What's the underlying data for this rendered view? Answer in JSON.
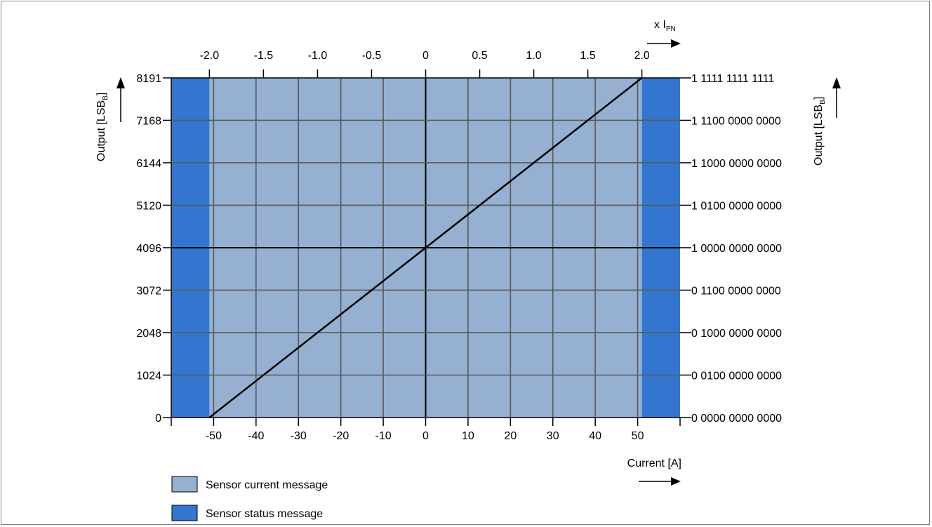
{
  "chart_data": {
    "type": "line",
    "xlabel": "Current [A]",
    "ylabel_left": "Output [LSB",
    "ylabel_right": "Output [LSB",
    "ylabel_subscript": "B",
    "x2label": "x I",
    "x2label_subscript": "PN",
    "xlim": [
      -60,
      60
    ],
    "ylim": [
      0,
      8191
    ],
    "x_ticks": [
      -50,
      -40,
      -30,
      -20,
      -10,
      0,
      10,
      20,
      30,
      40,
      50
    ],
    "x_tick_labels": [
      "-50",
      "-40",
      "-30",
      "-20",
      "-10",
      "0",
      "10",
      "20",
      "30",
      "40",
      "50"
    ],
    "x2_ticks": [
      -2.0,
      -1.5,
      -1.0,
      -0.5,
      0,
      0.5,
      1.0,
      1.5,
      2.0
    ],
    "x2_tick_labels": [
      "-2.0",
      "-1.5",
      "-1.0",
      "-0.5",
      "0",
      "0.5",
      "1.0",
      "1.5",
      "2.0"
    ],
    "y_ticks": [
      0,
      1024,
      2048,
      3072,
      4096,
      5120,
      6144,
      7168,
      8191
    ],
    "y_tick_labels": [
      "0",
      "1024",
      "2048",
      "3072",
      "4096",
      "5120",
      "6144",
      "7168",
      "8191"
    ],
    "y2_tick_labels": [
      "0 0000 0000 0000",
      "0 0100 0000 0000",
      "0 1000 0000 0000",
      "0 1100 0000 0000",
      "1 0000 0000 0000",
      "1 0100 0000 0000",
      "1 1000 0000 0000",
      "1 1100 0000 0000",
      "1 1111 1111 1111"
    ],
    "series": [
      {
        "x": [
          -51,
          51
        ],
        "y": [
          0,
          8191
        ],
        "color": "#000000"
      }
    ],
    "regions": [
      {
        "x_from": -51,
        "x_to": 51,
        "color": "#95b0d1"
      },
      {
        "x_from": -60,
        "x_to": -51,
        "color": "#3475cf"
      },
      {
        "x_from": 51,
        "x_to": 60,
        "color": "#3475cf"
      }
    ],
    "grid": true,
    "legend_position": "bottom-left",
    "legend": [
      {
        "label": "Sensor current message",
        "color": "#95b0d1"
      },
      {
        "label": "Sensor status message",
        "color": "#3475cf"
      }
    ]
  }
}
